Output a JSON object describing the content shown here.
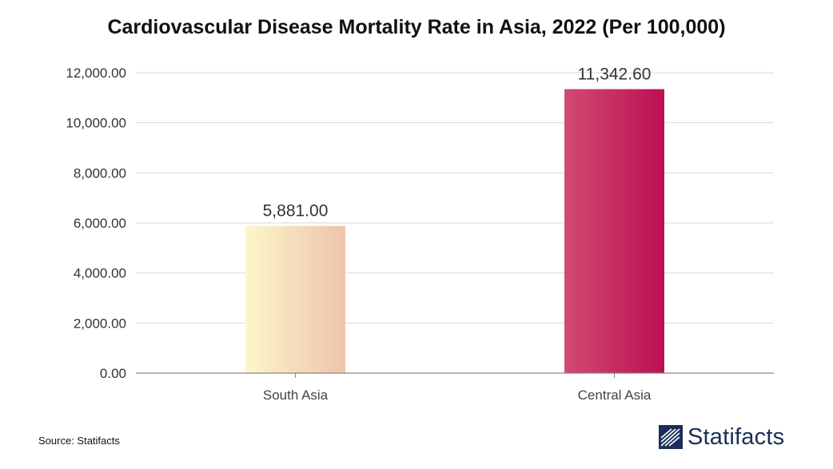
{
  "chart_data": {
    "type": "bar",
    "title": "Cardiovascular Disease Mortality Rate in Asia, 2022 (Per 100,000)",
    "categories": [
      "South Asia",
      "Central Asia"
    ],
    "values": [
      5881.0,
      11342.6
    ],
    "value_labels": [
      "5,881.00",
      "11,342.60"
    ],
    "ylim": [
      0,
      12000
    ],
    "yticks": [
      0,
      2000,
      4000,
      6000,
      8000,
      10000,
      12000
    ],
    "ytick_labels": [
      "0.00",
      "2,000.00",
      "4,000.00",
      "6,000.00",
      "8,000.00",
      "10,000.00",
      "12,000.00"
    ],
    "xlabel": "",
    "ylabel": "",
    "grid": true,
    "legend": "none",
    "bar_gradients": [
      [
        "#fdf6c8",
        "#eec3ad"
      ],
      [
        "#d24a72",
        "#bd0f54"
      ]
    ],
    "grid_color": "#d9d9d9",
    "axis_color": "#888888"
  },
  "footer": {
    "source": "Source: Statifacts",
    "brand": "Statifacts",
    "brand_icon": "statifacts-logo-icon",
    "brand_color": "#1b2e5a"
  }
}
